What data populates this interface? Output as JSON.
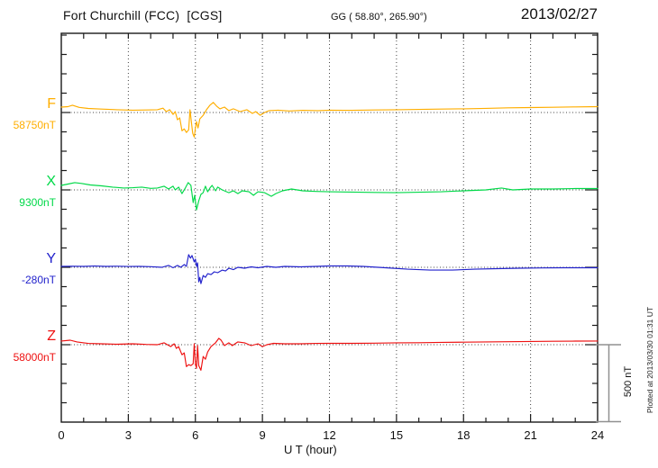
{
  "header": {
    "title": "Fort Churchill (FCC)  [CGS]",
    "coords": "GG ( 58.80°, 265.90°)",
    "date": "2013/02/27"
  },
  "x_axis": {
    "title": "U T (hour)",
    "tick_labels": [
      "0",
      "3",
      "6",
      "9",
      "12",
      "15",
      "18",
      "21",
      "24"
    ]
  },
  "scale_bar": {
    "label": "500 nT"
  },
  "plotted_at": "Plotted at 2013/03/30 01:31 UT",
  "colors": {
    "F": "#FFAE00",
    "X": "#00D948",
    "Y": "#2222CC",
    "Z": "#EE1111",
    "frame": "#1a1a1a",
    "dotted": "#444444",
    "scalebar": "#909090"
  },
  "chart_data": {
    "type": "line",
    "title": "Fort Churchill (FCC) [CGS] magnetogram 2013/02/27",
    "xlabel": "U T (hour)",
    "xlim": [
      0,
      24
    ],
    "x_ticks": [
      0,
      3,
      6,
      9,
      12,
      15,
      18,
      21,
      24
    ],
    "grid": "vertical dotted every 3 h; dotted horizontal baseline per component",
    "scale_nT_per_division": 500,
    "legend_position": "left margin labels",
    "series": [
      {
        "name": "F",
        "baseline_label": "58750nT",
        "baseline_nT": 58750,
        "color": "#FFAE00",
        "points_hour_devnT": [
          [
            0,
            35
          ],
          [
            0.3,
            38
          ],
          [
            0.5,
            47
          ],
          [
            0.8,
            33
          ],
          [
            1.2,
            26
          ],
          [
            1.8,
            22
          ],
          [
            2.5,
            18
          ],
          [
            3.2,
            15
          ],
          [
            3.8,
            16
          ],
          [
            4.3,
            18
          ],
          [
            4.55,
            28
          ],
          [
            4.7,
            6
          ],
          [
            4.85,
            18
          ],
          [
            5.0,
            -12
          ],
          [
            5.1,
            6
          ],
          [
            5.2,
            -47
          ],
          [
            5.3,
            -35
          ],
          [
            5.4,
            -118
          ],
          [
            5.5,
            -106
          ],
          [
            5.6,
            -129
          ],
          [
            5.7,
            -112
          ],
          [
            5.76,
            18
          ],
          [
            5.82,
            -60
          ],
          [
            5.88,
            -135
          ],
          [
            5.95,
            -159
          ],
          [
            6.0,
            -100
          ],
          [
            6.05,
            -59
          ],
          [
            6.12,
            -100
          ],
          [
            6.2,
            -41
          ],
          [
            6.35,
            -18
          ],
          [
            6.5,
            18
          ],
          [
            6.65,
            47
          ],
          [
            6.8,
            65
          ],
          [
            6.95,
            41
          ],
          [
            7.1,
            24
          ],
          [
            7.3,
            35
          ],
          [
            7.5,
            12
          ],
          [
            7.7,
            24
          ],
          [
            8.0,
            6
          ],
          [
            8.3,
            18
          ],
          [
            8.55,
            -6
          ],
          [
            8.7,
            6
          ],
          [
            8.9,
            -18
          ],
          [
            9.1,
            0
          ],
          [
            9.3,
            12
          ],
          [
            9.7,
            15
          ],
          [
            10.2,
            10
          ],
          [
            10.8,
            14
          ],
          [
            11.5,
            12
          ],
          [
            12,
            15
          ],
          [
            13,
            14
          ],
          [
            14,
            16
          ],
          [
            15,
            18
          ],
          [
            16,
            20
          ],
          [
            17,
            22
          ],
          [
            18,
            24
          ],
          [
            19,
            27
          ],
          [
            20,
            30
          ],
          [
            21,
            32
          ],
          [
            22,
            34
          ],
          [
            23,
            36
          ],
          [
            24,
            38
          ]
        ]
      },
      {
        "name": "X",
        "baseline_label": "9300nT",
        "baseline_nT": 9300,
        "color": "#00D948",
        "points_hour_devnT": [
          [
            0,
            29
          ],
          [
            0.3,
            38
          ],
          [
            0.6,
            47
          ],
          [
            0.9,
            42
          ],
          [
            1.3,
            32
          ],
          [
            1.8,
            26
          ],
          [
            2.3,
            18
          ],
          [
            2.8,
            12
          ],
          [
            3.2,
            14
          ],
          [
            3.6,
            18
          ],
          [
            4.0,
            10
          ],
          [
            4.3,
            12
          ],
          [
            4.6,
            24
          ],
          [
            4.8,
            6
          ],
          [
            5.0,
            24
          ],
          [
            5.1,
            0
          ],
          [
            5.25,
            18
          ],
          [
            5.4,
            -24
          ],
          [
            5.55,
            12
          ],
          [
            5.68,
            47
          ],
          [
            5.8,
            29
          ],
          [
            5.9,
            -82
          ],
          [
            5.97,
            -35
          ],
          [
            6.05,
            -129
          ],
          [
            6.15,
            -71
          ],
          [
            6.25,
            -29
          ],
          [
            6.35,
            -18
          ],
          [
            6.45,
            24
          ],
          [
            6.55,
            -12
          ],
          [
            6.65,
            12
          ],
          [
            6.75,
            29
          ],
          [
            6.9,
            -6
          ],
          [
            7.0,
            18
          ],
          [
            7.2,
            0
          ],
          [
            7.5,
            -18
          ],
          [
            7.7,
            -6
          ],
          [
            7.9,
            -24
          ],
          [
            8.1,
            -6
          ],
          [
            8.4,
            -12
          ],
          [
            8.6,
            -35
          ],
          [
            8.8,
            -12
          ],
          [
            9.1,
            -18
          ],
          [
            9.4,
            -41
          ],
          [
            9.6,
            -24
          ],
          [
            9.9,
            -6
          ],
          [
            10.3,
            6
          ],
          [
            10.8,
            -6
          ],
          [
            11.4,
            -10
          ],
          [
            12,
            -12
          ],
          [
            13,
            -14
          ],
          [
            14,
            -16
          ],
          [
            15,
            -18
          ],
          [
            16,
            -15
          ],
          [
            17,
            -12
          ],
          [
            18,
            -6
          ],
          [
            19,
            0
          ],
          [
            19.7,
            12
          ],
          [
            20.2,
            0
          ],
          [
            21,
            6
          ],
          [
            22,
            6
          ],
          [
            23,
            9
          ],
          [
            24,
            9
          ]
        ]
      },
      {
        "name": "Y",
        "baseline_label": "-280nT",
        "baseline_nT": -280,
        "color": "#2222CC",
        "points_hour_devnT": [
          [
            0,
            6
          ],
          [
            0.5,
            7
          ],
          [
            1,
            6
          ],
          [
            1.5,
            8
          ],
          [
            2,
            6
          ],
          [
            2.5,
            7
          ],
          [
            3,
            5
          ],
          [
            3.5,
            6
          ],
          [
            4,
            4
          ],
          [
            4.5,
            0
          ],
          [
            4.8,
            12
          ],
          [
            5.0,
            -3
          ],
          [
            5.2,
            12
          ],
          [
            5.35,
            0
          ],
          [
            5.5,
            18
          ],
          [
            5.6,
            6
          ],
          [
            5.7,
            82
          ],
          [
            5.78,
            59
          ],
          [
            5.85,
            76
          ],
          [
            5.95,
            35
          ],
          [
            6.0,
            53
          ],
          [
            6.05,
            6
          ],
          [
            6.1,
            29
          ],
          [
            6.15,
            -94
          ],
          [
            6.2,
            -65
          ],
          [
            6.25,
            -106
          ],
          [
            6.35,
            -53
          ],
          [
            6.45,
            -65
          ],
          [
            6.55,
            -41
          ],
          [
            6.7,
            -47
          ],
          [
            6.85,
            -29
          ],
          [
            7.0,
            -35
          ],
          [
            7.2,
            -18
          ],
          [
            7.35,
            -24
          ],
          [
            7.5,
            -6
          ],
          [
            7.7,
            -15
          ],
          [
            7.9,
            0
          ],
          [
            8.2,
            -6
          ],
          [
            8.5,
            3
          ],
          [
            8.8,
            -3
          ],
          [
            9.2,
            6
          ],
          [
            9.6,
            0
          ],
          [
            10,
            6
          ],
          [
            10.7,
            3
          ],
          [
            11.4,
            6
          ],
          [
            12,
            9
          ],
          [
            12.8,
            9
          ],
          [
            13.5,
            6
          ],
          [
            14.5,
            -3
          ],
          [
            15.5,
            -12
          ],
          [
            16.5,
            -18
          ],
          [
            17.5,
            -18
          ],
          [
            18.5,
            -12
          ],
          [
            19.5,
            -9
          ],
          [
            20.5,
            -6
          ],
          [
            21.5,
            -4
          ],
          [
            22.5,
            -3
          ],
          [
            23.2,
            -3
          ],
          [
            24,
            -3
          ]
        ]
      },
      {
        "name": "Z",
        "baseline_label": "58000nT",
        "baseline_nT": 58000,
        "color": "#EE1111",
        "points_hour_devnT": [
          [
            0,
            24
          ],
          [
            0.4,
            29
          ],
          [
            0.7,
            18
          ],
          [
            1.2,
            8
          ],
          [
            1.8,
            6
          ],
          [
            2.5,
            3
          ],
          [
            3.2,
            6
          ],
          [
            3.8,
            2
          ],
          [
            4.3,
            0
          ],
          [
            4.6,
            12
          ],
          [
            4.9,
            -12
          ],
          [
            5.05,
            6
          ],
          [
            5.15,
            -24
          ],
          [
            5.25,
            -12
          ],
          [
            5.4,
            -65
          ],
          [
            5.5,
            -53
          ],
          [
            5.6,
            -141
          ],
          [
            5.7,
            -129
          ],
          [
            5.8,
            -135
          ],
          [
            5.9,
            -123
          ],
          [
            5.95,
            6
          ],
          [
            6.0,
            -123
          ],
          [
            6.05,
            -153
          ],
          [
            6.1,
            -6
          ],
          [
            6.15,
            -135
          ],
          [
            6.25,
            -165
          ],
          [
            6.35,
            -76
          ],
          [
            6.45,
            -94
          ],
          [
            6.55,
            -47
          ],
          [
            6.7,
            -12
          ],
          [
            6.9,
            12
          ],
          [
            7.05,
            41
          ],
          [
            7.15,
            29
          ],
          [
            7.3,
            -6
          ],
          [
            7.5,
            12
          ],
          [
            7.65,
            -6
          ],
          [
            7.9,
            18
          ],
          [
            8.2,
            12
          ],
          [
            8.5,
            -6
          ],
          [
            8.8,
            6
          ],
          [
            9.0,
            -12
          ],
          [
            9.2,
            0
          ],
          [
            9.5,
            9
          ],
          [
            10,
            6
          ],
          [
            10.7,
            6
          ],
          [
            11.4,
            8
          ],
          [
            12,
            9
          ],
          [
            13,
            9
          ],
          [
            14,
            10
          ],
          [
            15,
            12
          ],
          [
            16,
            13
          ],
          [
            17,
            15
          ],
          [
            18,
            16
          ],
          [
            19,
            18
          ],
          [
            20,
            19
          ],
          [
            21,
            21
          ],
          [
            22,
            22
          ],
          [
            23,
            23
          ],
          [
            24,
            24
          ]
        ]
      }
    ]
  }
}
